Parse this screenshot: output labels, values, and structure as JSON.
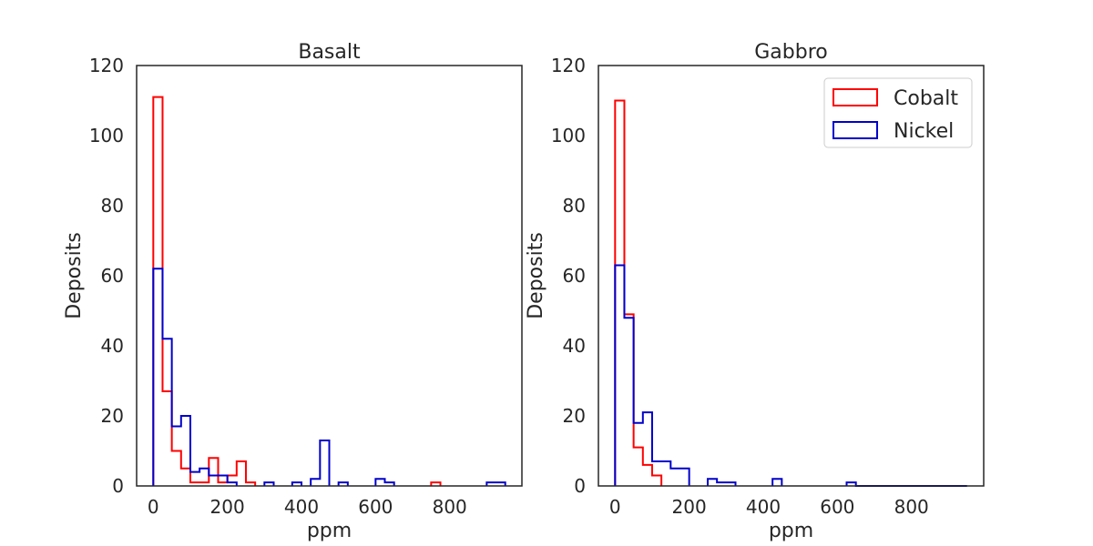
{
  "chart_data": [
    {
      "type": "histogram",
      "title": "Basalt",
      "xlabel": "ppm",
      "ylabel": "Deposits",
      "xlim": [
        -45,
        995
      ],
      "ylim": [
        0,
        120
      ],
      "xticks": [
        0,
        200,
        400,
        600,
        800
      ],
      "yticks": [
        0,
        20,
        40,
        60,
        80,
        100,
        120
      ],
      "grid": false,
      "bin_width": 25,
      "series": [
        {
          "name": "Cobalt",
          "color": "#ff0000",
          "bins": [
            [
              0,
              25,
              111
            ],
            [
              25,
              50,
              27
            ],
            [
              50,
              75,
              10
            ],
            [
              75,
              100,
              5
            ],
            [
              100,
              125,
              1
            ],
            [
              125,
              150,
              1
            ],
            [
              150,
              175,
              8
            ],
            [
              175,
              200,
              1
            ],
            [
              200,
              225,
              3
            ],
            [
              225,
              250,
              7
            ],
            [
              250,
              275,
              1
            ],
            [
              750,
              775,
              1
            ]
          ]
        },
        {
          "name": "Nickel",
          "color": "#0000cc",
          "bins": [
            [
              0,
              25,
              62
            ],
            [
              25,
              50,
              42
            ],
            [
              50,
              75,
              17
            ],
            [
              75,
              100,
              20
            ],
            [
              100,
              125,
              4
            ],
            [
              125,
              150,
              5
            ],
            [
              150,
              175,
              3
            ],
            [
              175,
              200,
              3
            ],
            [
              200,
              225,
              1
            ],
            [
              300,
              325,
              1
            ],
            [
              375,
              400,
              1
            ],
            [
              425,
              450,
              2
            ],
            [
              450,
              475,
              13
            ],
            [
              500,
              525,
              1
            ],
            [
              600,
              625,
              2
            ],
            [
              625,
              650,
              1
            ],
            [
              900,
              925,
              1
            ],
            [
              925,
              950,
              1
            ]
          ]
        }
      ]
    },
    {
      "type": "histogram",
      "title": "Gabbro",
      "xlabel": "ppm",
      "ylabel": "Deposits",
      "xlim": [
        -45,
        995
      ],
      "ylim": [
        0,
        120
      ],
      "xticks": [
        0,
        200,
        400,
        600,
        800
      ],
      "yticks": [
        0,
        20,
        40,
        60,
        80,
        100,
        120
      ],
      "grid": false,
      "legend": {
        "placement": "upper-right",
        "entries": [
          "Cobalt",
          "Nickel"
        ]
      },
      "series": [
        {
          "name": "Cobalt",
          "color": "#ff0000",
          "bins": [
            [
              0,
              25,
              110
            ],
            [
              25,
              50,
              49
            ],
            [
              50,
              75,
              11
            ],
            [
              75,
              100,
              6
            ],
            [
              100,
              125,
              3
            ]
          ]
        },
        {
          "name": "Nickel",
          "color": "#0000cc",
          "bins": [
            [
              0,
              25,
              63
            ],
            [
              25,
              50,
              48
            ],
            [
              50,
              75,
              18
            ],
            [
              75,
              100,
              21
            ],
            [
              100,
              150,
              7
            ],
            [
              150,
              200,
              5
            ],
            [
              250,
              275,
              2
            ],
            [
              275,
              325,
              1
            ],
            [
              425,
              450,
              2
            ],
            [
              625,
              650,
              1
            ],
            [
              650,
              950,
              0
            ]
          ]
        }
      ]
    }
  ]
}
